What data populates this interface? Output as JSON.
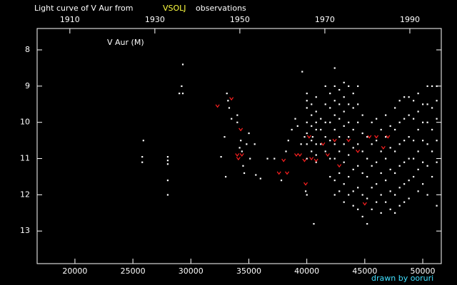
{
  "chart_data": {
    "type": "scatter",
    "title": "Light curve of V Aur from",
    "source": "VSOLJ",
    "title_suffix": "observations",
    "annotation": "V Aur (M)",
    "credit": "drawn by ooruri",
    "xlim": [
      16740,
      51600
    ],
    "xticks": [
      20000,
      25000,
      30000,
      35000,
      40000,
      45000,
      50000
    ],
    "x2lim": [
      1902.3,
      1997.4
    ],
    "x2ticks": [
      1910,
      1930,
      1950,
      1970,
      1990
    ],
    "ylim": [
      13.9,
      7.41
    ],
    "yticks": [
      8,
      9,
      10,
      11,
      12,
      13
    ],
    "background": "#000000",
    "series": [
      {
        "color": "#ffffff",
        "x": [
          25900,
          25800,
          25800,
          28000,
          28000,
          28000,
          28000,
          28000,
          29000,
          29200,
          29300,
          29300,
          32600,
          32900,
          33000,
          33100,
          33200,
          33300,
          33500,
          34000,
          34000,
          34200,
          34300,
          34400,
          34500,
          34600,
          34800,
          35000,
          35100,
          35500,
          35600,
          36000,
          36600,
          37200,
          37800,
          38200,
          38400,
          38700,
          39000,
          39200,
          39500,
          39600,
          39800,
          39900,
          40000,
          40500,
          40800,
          40600,
          40000,
          40000,
          40000,
          40000,
          40000,
          40000,
          40000,
          40400,
          40400,
          40400,
          40400,
          40400,
          40800,
          40800,
          40800,
          40800,
          40800,
          40800,
          41200,
          41200,
          41200,
          41600,
          41600,
          41600,
          41600,
          41600,
          42000,
          42000,
          42000,
          42000,
          42000,
          42000,
          42400,
          42400,
          42400,
          42400,
          42400,
          42400,
          42400,
          42400,
          42400,
          42800,
          42800,
          42800,
          42800,
          42800,
          42800,
          42800,
          43200,
          43200,
          43200,
          43200,
          43200,
          43200,
          43200,
          43200,
          43600,
          43600,
          43600,
          43600,
          43600,
          43600,
          43600,
          44000,
          44000,
          44000,
          44000,
          44000,
          44000,
          44000,
          44400,
          44400,
          44400,
          44400,
          44400,
          44400,
          44400,
          44800,
          44800,
          44800,
          44800,
          44800,
          44800,
          45200,
          45200,
          45200,
          45200,
          45200,
          45600,
          45600,
          45600,
          45600,
          45600,
          46000,
          46000,
          46000,
          46000,
          46000,
          46400,
          46400,
          46400,
          46400,
          46400,
          46800,
          46800,
          46800,
          46800,
          46800,
          47200,
          47200,
          47200,
          47200,
          47200,
          47600,
          47600,
          47600,
          47600,
          47600,
          47600,
          48000,
          48000,
          48000,
          48000,
          48000,
          48000,
          48400,
          48400,
          48400,
          48400,
          48400,
          48400,
          48800,
          48800,
          48800,
          48800,
          48800,
          48800,
          49200,
          49200,
          49200,
          49200,
          49200,
          49600,
          49600,
          49600,
          49600,
          49600,
          49600,
          50000,
          50000,
          50000,
          50000,
          50000,
          50400,
          50400,
          50400,
          50400,
          50400,
          50400,
          50800,
          50800,
          50800,
          50800,
          50800,
          51200,
          51200,
          51200,
          51200,
          51200,
          51200
        ],
        "values": [
          10.5,
          10.95,
          11.1,
          10.95,
          11.05,
          11.15,
          11.6,
          12.0,
          9.2,
          9.0,
          8.4,
          9.2,
          10.95,
          10.4,
          11.5,
          9.2,
          9.4,
          9.6,
          9.9,
          9.8,
          10.0,
          10.7,
          10.5,
          10.8,
          11.2,
          11.4,
          10.6,
          10.3,
          11.0,
          10.6,
          11.45,
          11.55,
          11.0,
          11.0,
          11.6,
          10.8,
          10.5,
          10.2,
          9.9,
          10.1,
          10.6,
          8.6,
          10.4,
          11.9,
          12.0,
          10.4,
          10.9,
          12.8,
          9.2,
          9.4,
          9.6,
          10.0,
          10.3,
          10.6,
          11.0,
          9.5,
          9.8,
          10.1,
          10.5,
          10.8,
          9.3,
          9.7,
          10.0,
          10.2,
          10.6,
          11.1,
          9.9,
          10.2,
          10.6,
          9.0,
          9.5,
          10.0,
          10.4,
          10.8,
          9.2,
          9.6,
          10.0,
          10.5,
          11.0,
          11.5,
          8.5,
          9.0,
          9.4,
          9.8,
          10.2,
          10.6,
          11.0,
          11.6,
          12.0,
          9.1,
          9.5,
          9.9,
          10.4,
          10.8,
          11.4,
          11.9,
          8.9,
          9.3,
          9.7,
          10.1,
          10.6,
          11.1,
          11.7,
          12.2,
          9.0,
          9.5,
          10.0,
          10.4,
          10.9,
          11.5,
          12.0,
          9.2,
          9.6,
          10.2,
          10.7,
          11.3,
          11.9,
          12.3,
          9.0,
          9.5,
          10.0,
          10.6,
          11.2,
          11.8,
          12.4,
          9.8,
          10.3,
          10.8,
          11.4,
          12.0,
          12.6,
          10.4,
          11.0,
          11.5,
          12.1,
          12.8,
          10.0,
          10.6,
          11.2,
          11.8,
          12.4,
          9.9,
          10.5,
          11.1,
          11.7,
          12.2,
          10.2,
          10.8,
          11.4,
          12.0,
          12.5,
          9.8,
          10.4,
          11.0,
          11.6,
          12.2,
          10.1,
          10.7,
          11.3,
          11.9,
          12.4,
          9.6,
          10.2,
          10.8,
          11.4,
          12.0,
          12.5,
          9.4,
          10.0,
          10.6,
          11.2,
          11.8,
          12.3,
          9.3,
          9.9,
          10.5,
          11.1,
          11.7,
          12.2,
          9.3,
          9.8,
          10.4,
          11.0,
          11.6,
          12.1,
          9.4,
          9.9,
          10.5,
          11.0,
          11.5,
          9.2,
          9.7,
          10.2,
          10.8,
          11.3,
          11.9,
          9.5,
          10.0,
          10.5,
          11.1,
          11.7,
          9.0,
          9.5,
          10.0,
          10.6,
          11.2,
          12.0,
          9.0,
          9.6,
          10.2,
          10.8,
          11.5,
          9.0,
          9.4,
          9.9,
          10.5,
          11.1,
          12.3
        ]
      },
      {
        "color": "#ff2020",
        "x": [
          32300,
          33500,
          34000,
          34100,
          34300,
          34400,
          37600,
          38000,
          38300,
          39100,
          39400,
          39800,
          39900,
          40200,
          40400,
          40800,
          41400,
          41800,
          42400,
          42800,
          43600,
          44400,
          45000,
          45400,
          46000,
          46600,
          47000
        ],
        "values": [
          9.55,
          9.35,
          10.9,
          11.0,
          10.2,
          10.9,
          11.4,
          11.05,
          11.4,
          10.9,
          10.9,
          11.05,
          11.7,
          10.4,
          11.0,
          11.05,
          10.6,
          10.9,
          10.5,
          11.2,
          10.5,
          10.8,
          12.25,
          10.4,
          10.4,
          10.7,
          10.4
        ]
      }
    ]
  }
}
